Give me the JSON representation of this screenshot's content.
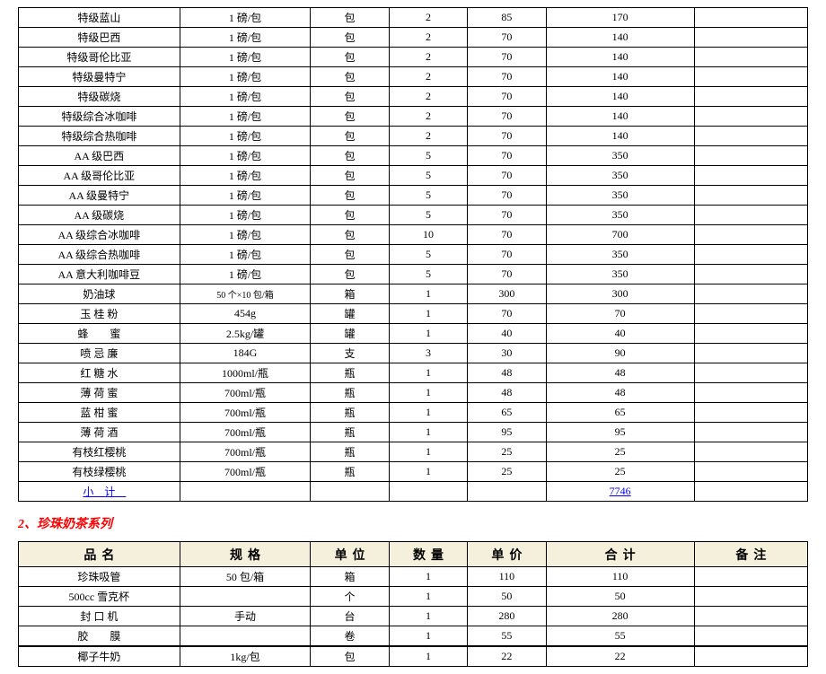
{
  "table1": {
    "rows": [
      {
        "name": "特级蓝山",
        "spec": "1 磅/包",
        "unit": "包",
        "qty": "2",
        "price": "85",
        "total": "170"
      },
      {
        "name": "特级巴西",
        "spec": "1 磅/包",
        "unit": "包",
        "qty": "2",
        "price": "70",
        "total": "140"
      },
      {
        "name": "特级哥伦比亚",
        "spec": "1 磅/包",
        "unit": "包",
        "qty": "2",
        "price": "70",
        "total": "140"
      },
      {
        "name": "特级曼特宁",
        "spec": "1 磅/包",
        "unit": "包",
        "qty": "2",
        "price": "70",
        "total": "140"
      },
      {
        "name": "特级碳烧",
        "spec": "1 磅/包",
        "unit": "包",
        "qty": "2",
        "price": "70",
        "total": "140"
      },
      {
        "name": "特级综合冰咖啡",
        "spec": "1 磅/包",
        "unit": "包",
        "qty": "2",
        "price": "70",
        "total": "140"
      },
      {
        "name": "特级综合热咖啡",
        "spec": "1 磅/包",
        "unit": "包",
        "qty": "2",
        "price": "70",
        "total": "140"
      },
      {
        "name": "AA 级巴西",
        "spec": "1 磅/包",
        "unit": "包",
        "qty": "5",
        "price": "70",
        "total": "350"
      },
      {
        "name": "AA 级哥伦比亚",
        "spec": "1 磅/包",
        "unit": "包",
        "qty": "5",
        "price": "70",
        "total": "350"
      },
      {
        "name": "AA 级曼特宁",
        "spec": "1 磅/包",
        "unit": "包",
        "qty": "5",
        "price": "70",
        "total": "350"
      },
      {
        "name": "AA 级碳烧",
        "spec": "1 磅/包",
        "unit": "包",
        "qty": "5",
        "price": "70",
        "total": "350"
      },
      {
        "name": "AA 级综合冰咖啡",
        "spec": "1 磅/包",
        "unit": "包",
        "qty": "10",
        "price": "70",
        "total": "700"
      },
      {
        "name": "AA 级综合热咖啡",
        "spec": "1 磅/包",
        "unit": "包",
        "qty": "5",
        "price": "70",
        "total": "350"
      },
      {
        "name": "AA 意大利咖啡豆",
        "spec": "1 磅/包",
        "unit": "包",
        "qty": "5",
        "price": "70",
        "total": "350"
      },
      {
        "name": "奶油球",
        "spec": "50 个×10 包/箱",
        "spec_small": true,
        "unit": "箱",
        "qty": "1",
        "price": "300",
        "total": "300"
      },
      {
        "name": "玉 桂 粉",
        "spec": "454g",
        "unit": "罐",
        "qty": "1",
        "price": "70",
        "total": "70"
      },
      {
        "name": "蜂　　蜜",
        "spec": "2.5kg/罐",
        "unit": "罐",
        "qty": "1",
        "price": "40",
        "total": "40"
      },
      {
        "name": "喷 忌 廉",
        "spec": "184G",
        "unit": "支",
        "qty": "3",
        "price": "30",
        "total": "90"
      },
      {
        "name": "红 糖 水",
        "spec": "1000ml/瓶",
        "unit": "瓶",
        "qty": "1",
        "price": "48",
        "total": "48"
      },
      {
        "name": "薄 荷 蜜",
        "spec": "700ml/瓶",
        "unit": "瓶",
        "qty": "1",
        "price": "48",
        "total": "48"
      },
      {
        "name": "蓝 柑 蜜",
        "spec": "700ml/瓶",
        "unit": "瓶",
        "qty": "1",
        "price": "65",
        "total": "65"
      },
      {
        "name": "薄 荷 酒",
        "spec": "700ml/瓶",
        "unit": "瓶",
        "qty": "1",
        "price": "95",
        "total": "95"
      },
      {
        "name": "有枝红樱桃",
        "spec": "700ml/瓶",
        "unit": "瓶",
        "qty": "1",
        "price": "25",
        "total": "25"
      },
      {
        "name": "有枝绿樱桃",
        "spec": "700ml/瓶",
        "unit": "瓶",
        "qty": "1",
        "price": "25",
        "total": "25"
      }
    ],
    "subtotal": {
      "label": "小计",
      "total": "7746"
    }
  },
  "section2_title": "2、珍珠奶茶系列",
  "table2": {
    "headers": {
      "name": "品名",
      "spec": "规格",
      "unit": "单位",
      "qty": "数量",
      "price": "单价",
      "total": "合计",
      "note": "备注"
    },
    "rows": [
      {
        "name": "珍珠吸管",
        "spec": "50 包/箱",
        "unit": "箱",
        "qty": "1",
        "price": "110",
        "total": "110"
      },
      {
        "name": "500cc 雪克杯",
        "spec": "",
        "unit": "个",
        "qty": "1",
        "price": "50",
        "total": "50"
      },
      {
        "name": "封 口 机",
        "spec": "手动",
        "unit": "台",
        "qty": "1",
        "price": "280",
        "total": "280"
      },
      {
        "name": "胶　　膜",
        "spec": "",
        "unit": "卷",
        "qty": "1",
        "price": "55",
        "total": "55"
      }
    ],
    "rows2": [
      {
        "name": "椰子牛奶",
        "spec": "1kg/包",
        "unit": "包",
        "qty": "1",
        "price": "22",
        "total": "22"
      }
    ]
  }
}
